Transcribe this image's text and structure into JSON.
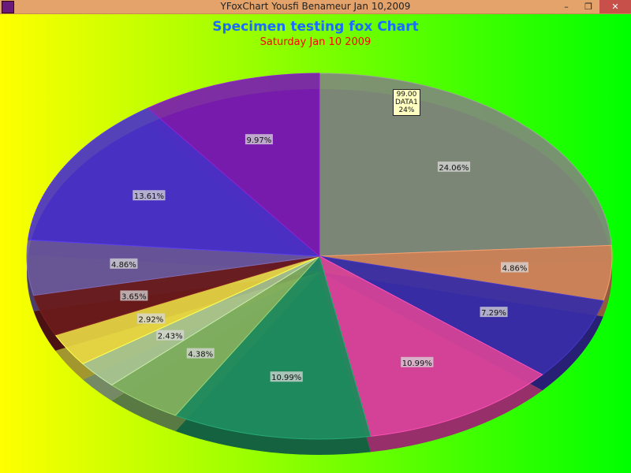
{
  "window": {
    "title": "YFoxChart   Yousfi  Benameur Jan 10,2009",
    "minimize": "–",
    "restore": "❐",
    "close": "✕",
    "icon": "chart-app-icon"
  },
  "chart_data": {
    "type": "pie",
    "style": "3d-exploded-ellipse",
    "title": "Specimen testing fox Chart",
    "subtitle": "Saturday Jan 10 2009",
    "slices": [
      {
        "label": "24.06%",
        "value": 24.06,
        "color": "#7f8a7a"
      },
      {
        "label": "4.86%",
        "value": 4.86,
        "color": "#d0845a"
      },
      {
        "label": "7.29%",
        "value": 7.29,
        "color": "#3a2ea8"
      },
      {
        "label": "10.99%",
        "value": 10.99,
        "color": "#d8449a"
      },
      {
        "label": "10.99%",
        "value": 10.99,
        "color": "#1f8c5e"
      },
      {
        "label": "4.38%",
        "value": 4.38,
        "color": "#80b060"
      },
      {
        "label": "2.43%",
        "value": 2.43,
        "color": "#a8c490"
      },
      {
        "label": "2.92%",
        "value": 2.92,
        "color": "#e8d844"
      },
      {
        "label": "3.65%",
        "value": 3.65,
        "color": "#6a1a1a"
      },
      {
        "label": "4.86%",
        "value": 4.86,
        "color": "#6a5898"
      },
      {
        "label": "13.61%",
        "value": 13.61,
        "color": "#4a32c8"
      },
      {
        "label": "9.97%",
        "value": 9.97,
        "color": "#7a1cb0"
      }
    ],
    "tooltip": {
      "value": "99.00",
      "name": "DATA1",
      "percent": "24%"
    },
    "background_gradient": [
      "#ffff00",
      "#00ff00"
    ]
  }
}
